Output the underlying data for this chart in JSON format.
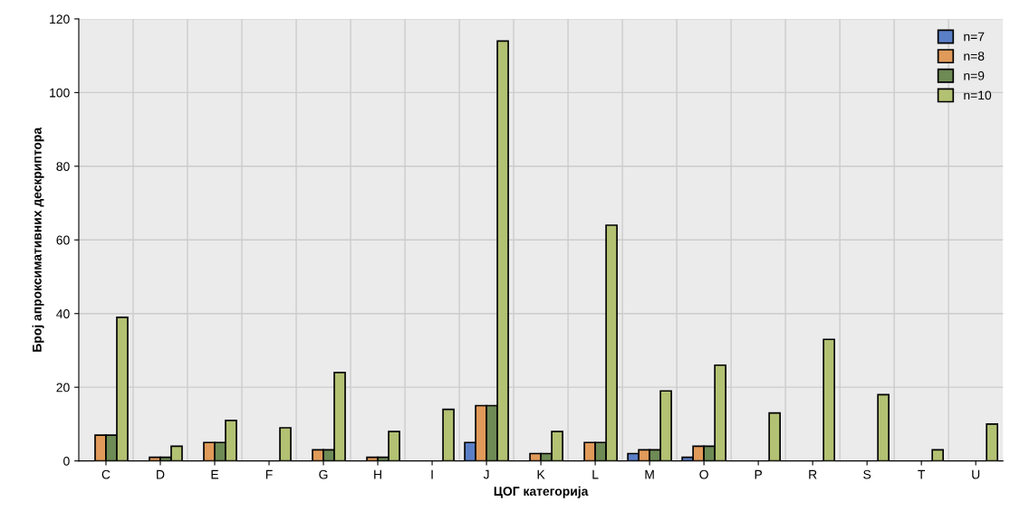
{
  "chart_data": {
    "type": "bar",
    "xlabel": "ЦОГ категорија",
    "ylabel": "Број апроксимативних дескриптора",
    "categories": [
      "C",
      "D",
      "E",
      "F",
      "G",
      "H",
      "I",
      "J",
      "K",
      "L",
      "M",
      "O",
      "P",
      "R",
      "S",
      "T",
      "U"
    ],
    "series": [
      {
        "name": "n=7",
        "color": "#5b7fc7",
        "values": [
          null,
          null,
          null,
          null,
          null,
          null,
          null,
          5,
          null,
          null,
          2,
          1,
          null,
          null,
          null,
          null,
          null
        ]
      },
      {
        "name": "n=8",
        "color": "#e09a5a",
        "values": [
          7,
          1,
          5,
          null,
          3,
          1,
          null,
          15,
          2,
          5,
          3,
          4,
          null,
          null,
          null,
          null,
          null
        ]
      },
      {
        "name": "n=9",
        "color": "#6e8a55",
        "values": [
          7,
          1,
          5,
          null,
          3,
          1,
          null,
          15,
          2,
          5,
          3,
          4,
          null,
          null,
          null,
          null,
          null
        ]
      },
      {
        "name": "n=10",
        "color": "#b3c173",
        "values": [
          39,
          4,
          11,
          9,
          24,
          8,
          14,
          114,
          8,
          64,
          19,
          26,
          13,
          33,
          18,
          3,
          10
        ]
      }
    ],
    "ylim": [
      0,
      120
    ],
    "yticks": [
      0,
      20,
      40,
      60,
      80,
      100,
      120
    ],
    "grid": true,
    "legend": "top right"
  }
}
